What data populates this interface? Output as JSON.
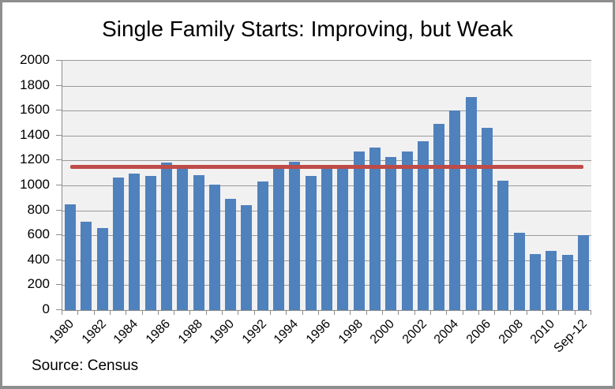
{
  "title": "Single Family Starts: Improving, but Weak",
  "source_note": "Source: Census",
  "colors": {
    "bar": "#4F81BD",
    "reference_line": "#BE4B48",
    "plot_background": "#F1F1F1",
    "gridline": "#9A9A9A",
    "axis": "#8C8C8C",
    "frame_border": "#8E8E8E",
    "text": "#000000"
  },
  "chart_data": {
    "type": "bar",
    "title": "Single Family Starts: Improving, but Weak",
    "categories": [
      "1980",
      "1981",
      "1982",
      "1983",
      "1984",
      "1985",
      "1986",
      "1987",
      "1988",
      "1989",
      "1990",
      "1991",
      "1992",
      "1993",
      "1994",
      "1995",
      "1996",
      "1997",
      "1998",
      "1999",
      "2000",
      "2001",
      "2002",
      "2003",
      "2004",
      "2005",
      "2006",
      "2007",
      "2008",
      "2009",
      "2010",
      "2011",
      "Sep-12"
    ],
    "values": [
      850,
      710,
      660,
      1065,
      1095,
      1075,
      1185,
      1140,
      1085,
      1005,
      895,
      840,
      1030,
      1130,
      1190,
      1075,
      1150,
      1135,
      1275,
      1305,
      1230,
      1270,
      1355,
      1495,
      1600,
      1710,
      1465,
      1040,
      620,
      450,
      475,
      440,
      600
    ],
    "x_tick_labels": [
      "1980",
      "1982",
      "1984",
      "1986",
      "1988",
      "1990",
      "1992",
      "1994",
      "1996",
      "1998",
      "2000",
      "2002",
      "2004",
      "2006",
      "2008",
      "2010",
      "Sep-12"
    ],
    "y_tick_labels": [
      "0",
      "200",
      "400",
      "600",
      "800",
      "1000",
      "1200",
      "1400",
      "1600",
      "1800",
      "2000"
    ],
    "ylim": [
      0,
      2000
    ],
    "y_tick_step": 200,
    "grid": "horizontal",
    "legend": "none",
    "xlabel": "",
    "ylabel": "",
    "reference_line": {
      "value": 1150
    }
  }
}
